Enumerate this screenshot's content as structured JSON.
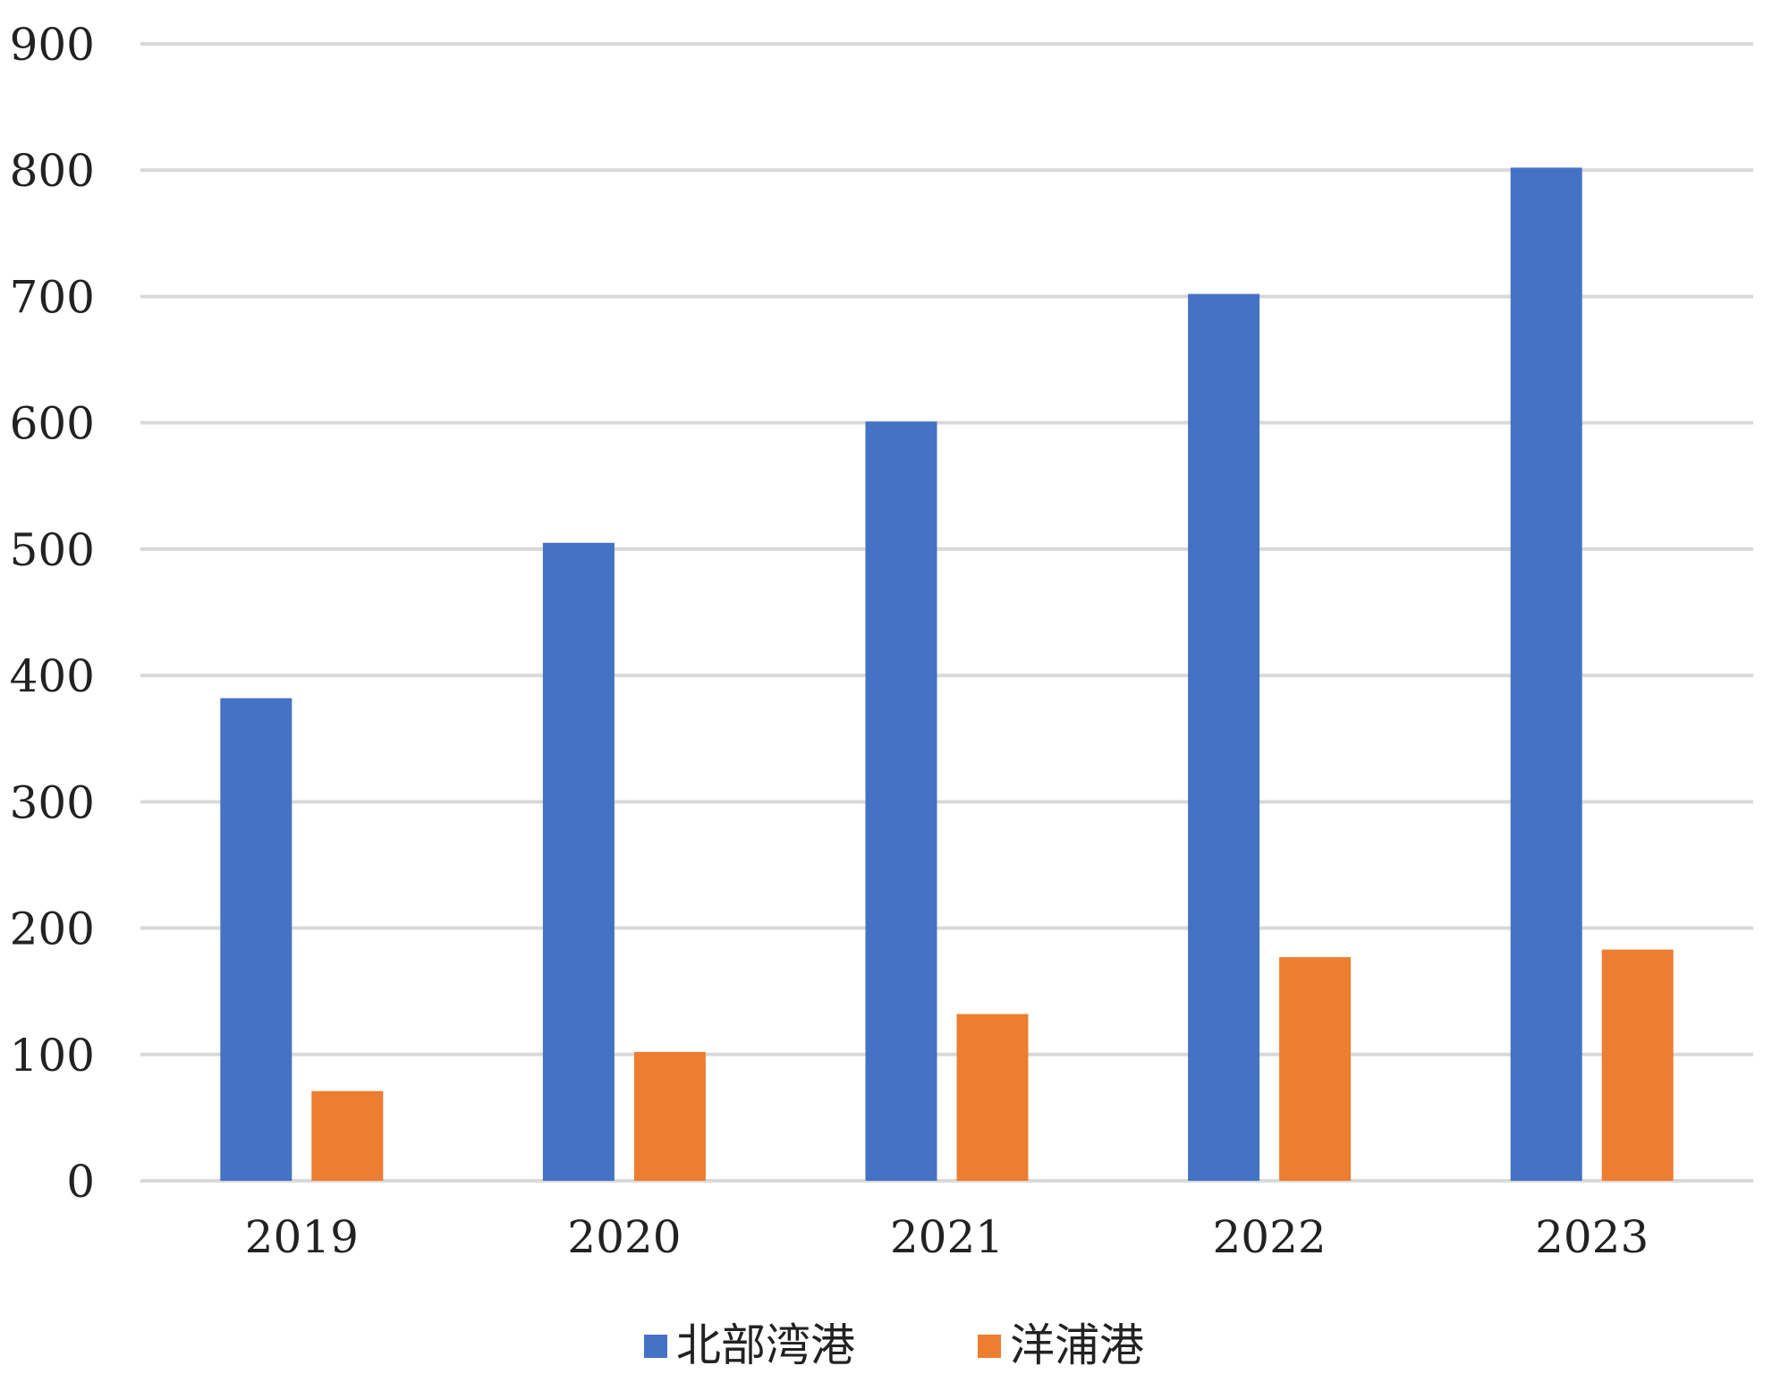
{
  "chart_data": {
    "type": "bar",
    "categories": [
      "2019",
      "2020",
      "2021",
      "2022",
      "2023"
    ],
    "series": [
      {
        "name": "北部湾港",
        "color": "#4472C4",
        "values": [
          382,
          505,
          601,
          702,
          802
        ]
      },
      {
        "name": "洋浦港",
        "color": "#ED7D31",
        "values": [
          71,
          102,
          132,
          177,
          183
        ]
      }
    ],
    "title": "",
    "xlabel": "",
    "ylabel": "",
    "ylim": [
      0,
      900
    ],
    "yticks": [
      0,
      100,
      200,
      300,
      400,
      500,
      600,
      700,
      800,
      900
    ],
    "grid": true,
    "gridColor": "#D9D9D9",
    "legend": "bottom-center"
  }
}
